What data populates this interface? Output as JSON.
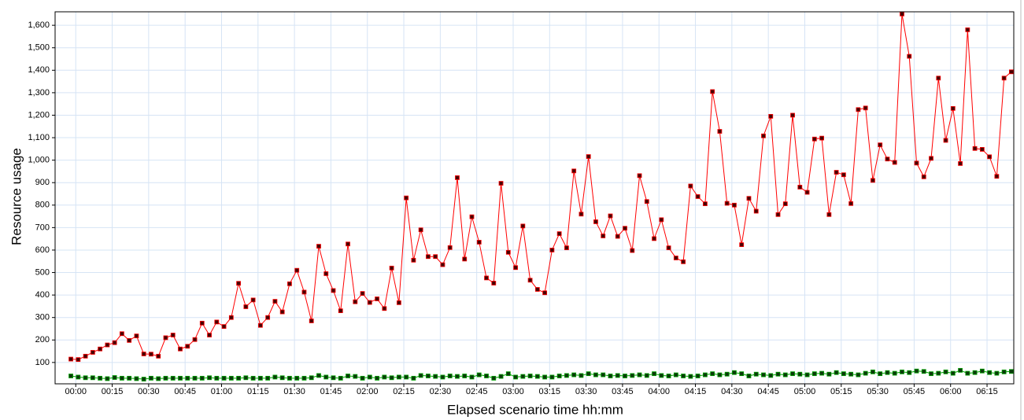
{
  "chart_data": {
    "type": "line",
    "y_label": "Resource usage",
    "x_label": "Elapsed scenario time hh:mm",
    "xlim": [
      -8.5,
      386
    ],
    "ylim": [
      5,
      1660
    ],
    "grid": true,
    "xticks": [
      {
        "value": 0,
        "label": "00:00"
      },
      {
        "value": 15,
        "label": "00:15"
      },
      {
        "value": 30,
        "label": "00:30"
      },
      {
        "value": 45,
        "label": "00:45"
      },
      {
        "value": 60,
        "label": "01:00"
      },
      {
        "value": 75,
        "label": "01:15"
      },
      {
        "value": 90,
        "label": "01:30"
      },
      {
        "value": 105,
        "label": "01:45"
      },
      {
        "value": 120,
        "label": "02:00"
      },
      {
        "value": 135,
        "label": "02:15"
      },
      {
        "value": 150,
        "label": "02:30"
      },
      {
        "value": 165,
        "label": "02:45"
      },
      {
        "value": 180,
        "label": "03:00"
      },
      {
        "value": 195,
        "label": "03:15"
      },
      {
        "value": 210,
        "label": "03:30"
      },
      {
        "value": 225,
        "label": "03:45"
      },
      {
        "value": 240,
        "label": "04:00"
      },
      {
        "value": 255,
        "label": "04:15"
      },
      {
        "value": 270,
        "label": "04:30"
      },
      {
        "value": 285,
        "label": "04:45"
      },
      {
        "value": 300,
        "label": "05:00"
      },
      {
        "value": 315,
        "label": "05:15"
      },
      {
        "value": 330,
        "label": "05:30"
      },
      {
        "value": 345,
        "label": "05:45"
      },
      {
        "value": 360,
        "label": "06:00"
      },
      {
        "value": 375,
        "label": "06:15"
      }
    ],
    "yticks": [
      100,
      200,
      300,
      400,
      500,
      600,
      700,
      800,
      900,
      {
        "value": 1000,
        "label": "1,000"
      },
      {
        "value": 1100,
        "label": "1,100"
      },
      {
        "value": 1200,
        "label": "1,200"
      },
      {
        "value": 1300,
        "label": "1,300"
      },
      {
        "value": 1400,
        "label": "1,400"
      },
      {
        "value": 1500,
        "label": "1,500"
      },
      {
        "value": 1600,
        "label": "1,600"
      }
    ],
    "x": [
      -2,
      1,
      4,
      7,
      10,
      13,
      16,
      19,
      22,
      25,
      28,
      31,
      34,
      37,
      40,
      43,
      46,
      49,
      52,
      55,
      58,
      61,
      64,
      67,
      70,
      73,
      76,
      79,
      82,
      85,
      88,
      91,
      94,
      97,
      100,
      103,
      106,
      109,
      112,
      115,
      118,
      121,
      124,
      127,
      130,
      133,
      136,
      139,
      142,
      145,
      148,
      151,
      154,
      157,
      160,
      163,
      166,
      169,
      172,
      175,
      178,
      181,
      184,
      187,
      190,
      193,
      196,
      199,
      202,
      205,
      208,
      211,
      214,
      217,
      220,
      223,
      226,
      229,
      232,
      235,
      238,
      241,
      244,
      247,
      250,
      253,
      256,
      259,
      262,
      265,
      268,
      271,
      274,
      277,
      280,
      283,
      286,
      289,
      292,
      295,
      298,
      301,
      304,
      307,
      310,
      313,
      316,
      319,
      322,
      325,
      328,
      331,
      334,
      337,
      340,
      343,
      346,
      349,
      352,
      355,
      358,
      361,
      364,
      367,
      370,
      373,
      376,
      379,
      382,
      385
    ],
    "series": [
      {
        "color": "#ff0000",
        "marker_color": "#4a0000",
        "values": [
          115,
          113,
          128,
          145,
          160,
          178,
          188,
          228,
          198,
          218,
          138,
          137,
          128,
          210,
          222,
          160,
          172,
          202,
          275,
          222,
          280,
          260,
          300,
          452,
          348,
          378,
          265,
          300,
          372,
          325,
          450,
          510,
          413,
          285,
          617,
          495,
          420,
          330,
          627,
          370,
          407,
          367,
          383,
          340,
          520,
          366,
          832,
          555,
          690,
          571,
          571,
          535,
          611,
          922,
          560,
          748,
          635,
          476,
          453,
          897,
          590,
          522,
          707,
          466,
          425,
          410,
          600,
          673,
          610,
          952,
          760,
          1016,
          726,
          663,
          752,
          661,
          697,
          598,
          931,
          816,
          651,
          735,
          610,
          565,
          548,
          885,
          838,
          806,
          1305,
          1128,
          808,
          800,
          624,
          830,
          773,
          1108,
          1195,
          758,
          806,
          1200,
          880,
          857,
          1094,
          1098,
          758,
          946,
          935,
          807,
          1225,
          1232,
          910,
          1068,
          1005,
          990,
          1650,
          1462,
          987,
          926,
          1008,
          1365,
          1088,
          1230,
          985,
          1580,
          1052,
          1048,
          1015,
          928,
          1365,
          1393
        ]
      },
      {
        "color": "#00a000",
        "marker_color": "#0a3a0a",
        "values": [
          40,
          35,
          32,
          32,
          30,
          28,
          33,
          30,
          30,
          28,
          26,
          30,
          28,
          30,
          30,
          30,
          30,
          30,
          30,
          32,
          30,
          30,
          30,
          30,
          32,
          30,
          30,
          30,
          35,
          32,
          30,
          30,
          30,
          32,
          42,
          35,
          32,
          30,
          40,
          38,
          30,
          35,
          30,
          35,
          32,
          35,
          35,
          30,
          42,
          40,
          38,
          35,
          40,
          38,
          40,
          35,
          45,
          40,
          30,
          38,
          50,
          35,
          38,
          40,
          38,
          35,
          35,
          40,
          42,
          45,
          42,
          50,
          45,
          45,
          40,
          42,
          40,
          42,
          45,
          42,
          50,
          42,
          40,
          45,
          40,
          38,
          40,
          45,
          50,
          45,
          48,
          55,
          50,
          40,
          48,
          45,
          42,
          48,
          45,
          50,
          48,
          45,
          50,
          52,
          48,
          55,
          50,
          48,
          45,
          52,
          58,
          50,
          55,
          52,
          58,
          55,
          62,
          60,
          50,
          52,
          58,
          52,
          65,
          52,
          55,
          62,
          55,
          52,
          58,
          60
        ]
      }
    ]
  }
}
